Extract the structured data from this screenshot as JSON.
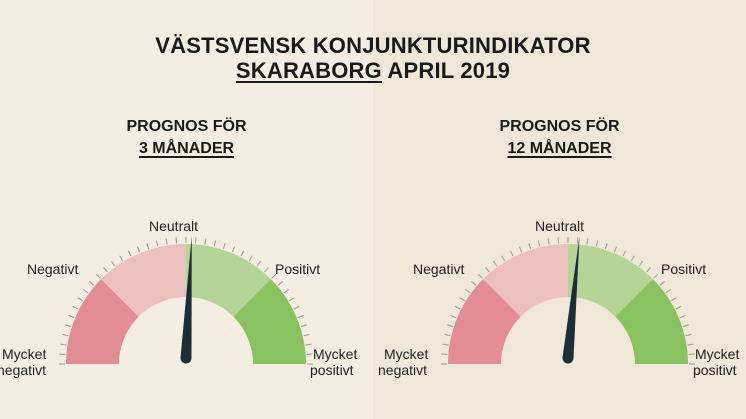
{
  "title": {
    "line1": "VÄSTSVENSK KONJUNKTURINDIKATOR",
    "line2_underlined": "SKARABORG",
    "line2_rest": " APRIL 2019"
  },
  "colors": {
    "mycket_negativt": "#e48c94",
    "negativt": "#ecc0bc",
    "positivt": "#b5d596",
    "mycket_positivt": "#88c35f",
    "needle": "#1e2d3a",
    "tick": "#9a9a9a",
    "inner": "#f3ede2"
  },
  "gauges": [
    {
      "heading_line1": "PROGNOS FÖR",
      "heading_line2": "3 MÅNADER",
      "labels": {
        "neutral": "Neutralt",
        "negative": "Negativt",
        "positive": "Positivt",
        "very_negative_1": "Mycket",
        "very_negative_2": "negativt",
        "very_positive_1": "Mycket",
        "very_positive_2": "positivt"
      }
    },
    {
      "heading_line1": "PROGNOS FÖR",
      "heading_line2": "12 MÅNADER",
      "labels": {
        "neutral": "Neutralt",
        "negative": "Negativt",
        "positive": "Positivt",
        "very_negative_1": "Mycket",
        "very_negative_2": "negativt",
        "very_positive_1": "Mycket",
        "very_positive_2": "positivt"
      }
    }
  ],
  "chart_data": [
    {
      "type": "gauge",
      "categories": [
        "Mycket negativt",
        "Negativt",
        "Neutralt",
        "Positivt",
        "Mycket positivt"
      ],
      "range": [
        -100,
        100
      ],
      "value": 3
    },
    {
      "type": "gauge",
      "categories": [
        "Mycket negativt",
        "Negativt",
        "Neutralt",
        "Positivt",
        "Mycket positivt"
      ],
      "range": [
        -100,
        100
      ],
      "value": 6
    }
  ]
}
